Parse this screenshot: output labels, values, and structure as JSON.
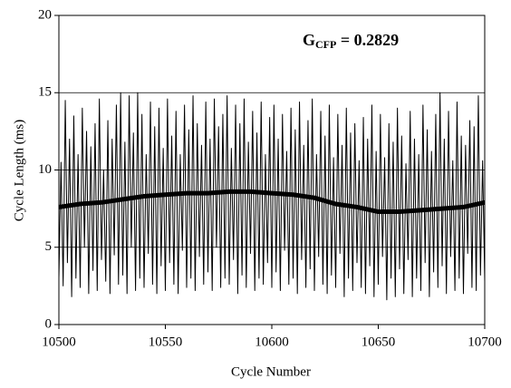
{
  "chart_data": {
    "type": "line",
    "xlabel": "Cycle Number",
    "ylabel": "Cycle Length (ms)",
    "annotation": {
      "symbol": "G",
      "subscript": "CFP",
      "text": " = 0.2829"
    },
    "xlim": [
      10500,
      10700
    ],
    "xticks": [
      10500,
      10550,
      10600,
      10650,
      10700
    ],
    "ylim": [
      0,
      20
    ],
    "yticks": [
      0,
      5,
      10,
      15,
      20
    ],
    "grid": true,
    "x": [
      10500,
      10501,
      10502,
      10503,
      10504,
      10505,
      10506,
      10507,
      10508,
      10509,
      10510,
      10511,
      10512,
      10513,
      10514,
      10515,
      10516,
      10517,
      10518,
      10519,
      10520,
      10521,
      10522,
      10523,
      10524,
      10525,
      10526,
      10527,
      10528,
      10529,
      10530,
      10531,
      10532,
      10533,
      10534,
      10535,
      10536,
      10537,
      10538,
      10539,
      10540,
      10541,
      10542,
      10543,
      10544,
      10545,
      10546,
      10547,
      10548,
      10549,
      10550,
      10551,
      10552,
      10553,
      10554,
      10555,
      10556,
      10557,
      10558,
      10559,
      10560,
      10561,
      10562,
      10563,
      10564,
      10565,
      10566,
      10567,
      10568,
      10569,
      10570,
      10571,
      10572,
      10573,
      10574,
      10575,
      10576,
      10577,
      10578,
      10579,
      10580,
      10581,
      10582,
      10583,
      10584,
      10585,
      10586,
      10587,
      10588,
      10589,
      10590,
      10591,
      10592,
      10593,
      10594,
      10595,
      10596,
      10597,
      10598,
      10599,
      10600,
      10601,
      10602,
      10603,
      10604,
      10605,
      10606,
      10607,
      10608,
      10609,
      10610,
      10611,
      10612,
      10613,
      10614,
      10615,
      10616,
      10617,
      10618,
      10619,
      10620,
      10621,
      10622,
      10623,
      10624,
      10625,
      10626,
      10627,
      10628,
      10629,
      10630,
      10631,
      10632,
      10633,
      10634,
      10635,
      10636,
      10637,
      10638,
      10639,
      10640,
      10641,
      10642,
      10643,
      10644,
      10645,
      10646,
      10647,
      10648,
      10649,
      10650,
      10651,
      10652,
      10653,
      10654,
      10655,
      10656,
      10657,
      10658,
      10659,
      10660,
      10661,
      10662,
      10663,
      10664,
      10665,
      10666,
      10667,
      10668,
      10669,
      10670,
      10671,
      10672,
      10673,
      10674,
      10675,
      10676,
      10677,
      10678,
      10679,
      10680,
      10681,
      10682,
      10683,
      10684,
      10685,
      10686,
      10687,
      10688,
      10689,
      10690,
      10691,
      10692,
      10693,
      10694,
      10695,
      10696,
      10697,
      10698,
      10699,
      10700
    ],
    "series": [
      {
        "color": "#000000",
        "width": 1,
        "values": [
          3.0,
          10.5,
          2.5,
          14.5,
          4.0,
          12.0,
          1.8,
          13.5,
          3.0,
          11.0,
          2.4,
          14.0,
          5.0,
          12.5,
          2.0,
          11.5,
          3.5,
          13.0,
          2.2,
          14.6,
          4.2,
          10.0,
          2.8,
          13.2,
          2.0,
          12.0,
          4.5,
          14.2,
          2.6,
          15.0,
          3.2,
          11.8,
          2.0,
          14.8,
          5.0,
          12.4,
          2.2,
          15.0,
          3.0,
          13.6,
          2.4,
          11.0,
          4.6,
          14.4,
          2.6,
          12.8,
          2.0,
          14.0,
          3.8,
          11.4,
          2.2,
          14.6,
          4.0,
          12.2,
          2.6,
          13.8,
          2.0,
          11.0,
          4.8,
          14.2,
          2.4,
          12.6,
          3.0,
          14.8,
          2.2,
          13.0,
          4.4,
          11.6,
          2.6,
          14.4,
          3.4,
          12.0,
          2.2,
          14.6,
          5.0,
          12.8,
          2.4,
          13.6,
          3.0,
          14.8,
          2.6,
          11.4,
          4.2,
          14.2,
          2.0,
          13.0,
          3.2,
          14.6,
          2.4,
          11.8,
          4.6,
          13.8,
          2.2,
          12.4,
          3.0,
          14.4,
          2.6,
          11.0,
          4.0,
          13.4,
          2.4,
          14.2,
          3.4,
          12.0,
          2.2,
          13.6,
          4.8,
          11.2,
          2.6,
          14.0,
          3.0,
          12.6,
          2.0,
          14.4,
          4.2,
          11.6,
          2.4,
          13.2,
          3.6,
          14.6,
          2.2,
          11.0,
          4.4,
          13.8,
          2.6,
          12.2,
          2.0,
          14.2,
          3.2,
          10.8,
          2.4,
          13.6,
          4.6,
          11.6,
          1.8,
          14.0,
          3.0,
          12.4,
          2.2,
          13.0,
          4.0,
          10.6,
          2.4,
          13.4,
          2.0,
          12.0,
          3.8,
          14.2,
          1.8,
          11.2,
          2.6,
          13.6,
          4.4,
          10.8,
          1.6,
          13.0,
          3.0,
          11.8,
          1.8,
          14.0,
          3.6,
          12.2,
          2.0,
          10.4,
          4.2,
          13.8,
          1.8,
          12.0,
          3.0,
          11.0,
          2.2,
          14.2,
          4.0,
          12.6,
          1.8,
          11.2,
          3.4,
          13.6,
          2.4,
          15.0,
          3.8,
          12.0,
          2.0,
          13.8,
          4.4,
          10.6,
          2.2,
          14.4,
          3.0,
          12.2,
          2.0,
          11.6,
          4.6,
          13.2,
          2.4,
          12.8,
          2.2,
          14.8,
          3.2,
          10.6,
          2.8
        ]
      },
      {
        "color": "#000000",
        "width": 5,
        "x": [
          10500,
          10510,
          10520,
          10530,
          10540,
          10550,
          10560,
          10570,
          10580,
          10590,
          10600,
          10610,
          10620,
          10630,
          10640,
          10650,
          10660,
          10670,
          10680,
          10690,
          10700
        ],
        "values": [
          7.6,
          7.8,
          7.9,
          8.1,
          8.3,
          8.4,
          8.5,
          8.5,
          8.6,
          8.6,
          8.5,
          8.4,
          8.2,
          7.8,
          7.6,
          7.3,
          7.3,
          7.4,
          7.5,
          7.6,
          7.9
        ]
      }
    ]
  }
}
